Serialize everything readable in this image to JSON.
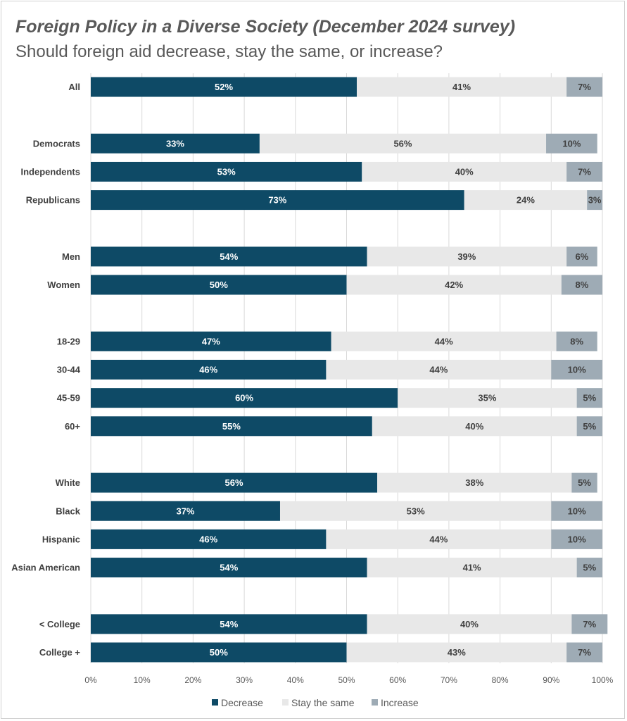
{
  "chart_data": {
    "type": "bar",
    "orientation": "horizontal",
    "stacked": true,
    "title": "Foreign Policy in a Diverse Society (December 2024 survey)",
    "subtitle": "Should foreign aid decrease, stay the same, or increase?",
    "categories": [
      "All",
      "",
      "Democrats",
      "Independents",
      "Republicans",
      "",
      "Men",
      "Women",
      "",
      "18-29",
      "30-44",
      "45-59",
      "60+",
      "",
      "White",
      "Black",
      "Hispanic",
      "Asian American",
      "",
      "< College",
      "College +"
    ],
    "series": [
      {
        "name": "Decrease",
        "color": "#0e4a66",
        "values": [
          52,
          null,
          33,
          53,
          73,
          null,
          54,
          50,
          null,
          47,
          46,
          60,
          55,
          null,
          56,
          37,
          46,
          54,
          null,
          54,
          50
        ]
      },
      {
        "name": "Stay the same",
        "color": "#e8e8e8",
        "values": [
          41,
          null,
          56,
          40,
          24,
          null,
          39,
          42,
          null,
          44,
          44,
          35,
          40,
          null,
          38,
          53,
          44,
          41,
          null,
          40,
          43
        ]
      },
      {
        "name": "Increase",
        "color": "#9eabb5",
        "values": [
          7,
          null,
          10,
          7,
          3,
          null,
          6,
          8,
          null,
          8,
          10,
          5,
          5,
          null,
          5,
          10,
          10,
          5,
          null,
          7,
          7
        ]
      }
    ],
    "xlim": [
      0,
      100
    ],
    "xticks": [
      "0%",
      "10%",
      "20%",
      "30%",
      "40%",
      "50%",
      "60%",
      "70%",
      "80%",
      "90%",
      "100%"
    ],
    "legend_position": "bottom",
    "grid": true
  }
}
